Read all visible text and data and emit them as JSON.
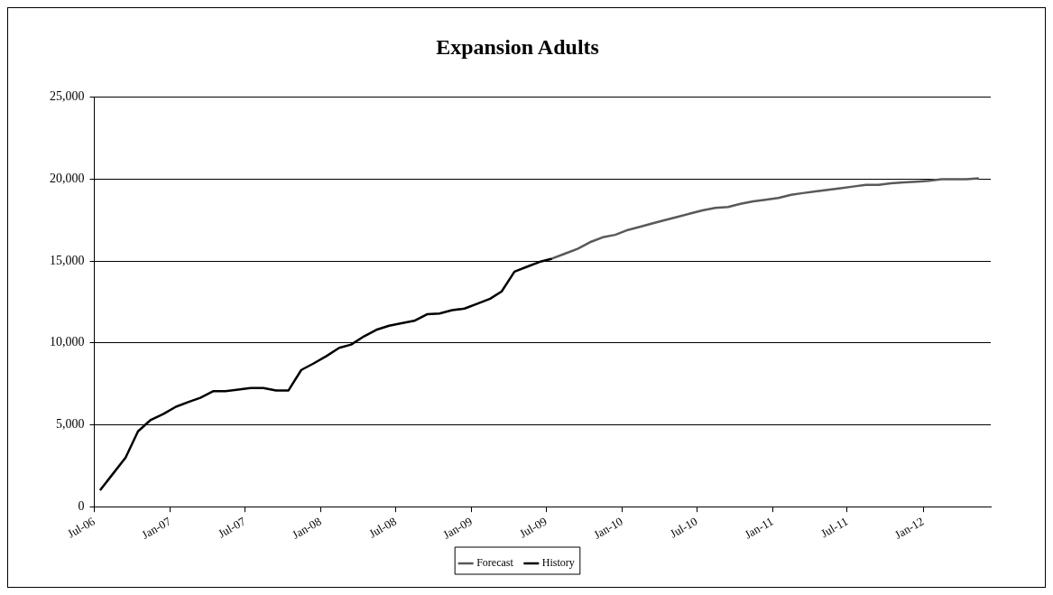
{
  "chart_data": {
    "type": "line",
    "title": "Expansion Adults",
    "xlim": [
      "2006-07-01",
      "2012-06-13"
    ],
    "xticks": [
      {
        "value": "2006-07-01",
        "label": "Jul-06"
      },
      {
        "value": "2007-01-01",
        "label": "Jan-07"
      },
      {
        "value": "2007-07-01",
        "label": "Jul-07"
      },
      {
        "value": "2008-01-01",
        "label": "Jan-08"
      },
      {
        "value": "2008-07-01",
        "label": "Jul-08"
      },
      {
        "value": "2009-01-01",
        "label": "Jan-09"
      },
      {
        "value": "2009-07-01",
        "label": "Jul-09"
      },
      {
        "value": "2010-01-01",
        "label": "Jan-10"
      },
      {
        "value": "2010-07-01",
        "label": "Jul-10"
      },
      {
        "value": "2011-01-01",
        "label": "Jan-11"
      },
      {
        "value": "2011-07-01",
        "label": "Jul-11"
      },
      {
        "value": "2012-01-01",
        "label": "Jan-12"
      }
    ],
    "ylim": [
      0,
      25000
    ],
    "yticks": [
      {
        "value": 0,
        "label": "0"
      },
      {
        "value": 5000,
        "label": "5,000"
      },
      {
        "value": 10000,
        "label": "10,000"
      },
      {
        "value": 15000,
        "label": "15,000"
      },
      {
        "value": 20000,
        "label": "20,000"
      },
      {
        "value": 25000,
        "label": "25,000"
      }
    ],
    "grid": "y",
    "legend": "bottom",
    "marker": "none",
    "line_style": "solid",
    "series": [
      {
        "name": "Forecast",
        "color": "#595959",
        "x": [
          "2009-07-15",
          "2009-08-15",
          "2009-09-15",
          "2009-10-15",
          "2009-11-15",
          "2009-12-15",
          "2010-01-15",
          "2010-02-15",
          "2010-03-15",
          "2010-04-15",
          "2010-05-15",
          "2010-06-15",
          "2010-07-15",
          "2010-08-15",
          "2010-09-15",
          "2010-10-15",
          "2010-11-15",
          "2010-12-15",
          "2011-01-15",
          "2011-02-15",
          "2011-03-15",
          "2011-04-15",
          "2011-05-15",
          "2011-06-15",
          "2011-07-15",
          "2011-08-15",
          "2011-09-15",
          "2011-10-15",
          "2011-11-15",
          "2011-12-15",
          "2012-01-15",
          "2012-02-15",
          "2012-03-15",
          "2012-04-15",
          "2012-05-15"
        ],
        "values": [
          15150,
          15450,
          15750,
          16150,
          16450,
          16600,
          16900,
          17100,
          17300,
          17500,
          17700,
          17900,
          18100,
          18250,
          18300,
          18500,
          18650,
          18750,
          18850,
          19050,
          19150,
          19250,
          19350,
          19450,
          19550,
          19650,
          19650,
          19750,
          19800,
          19850,
          19900,
          20000,
          20000,
          20000,
          20050
        ]
      },
      {
        "name": "History",
        "color": "#000000",
        "x": [
          "2006-07-15",
          "2006-08-15",
          "2006-09-15",
          "2006-10-15",
          "2006-11-15",
          "2006-12-15",
          "2007-01-15",
          "2007-02-15",
          "2007-03-15",
          "2007-04-15",
          "2007-05-15",
          "2007-06-15",
          "2007-07-15",
          "2007-08-15",
          "2007-09-15",
          "2007-10-15",
          "2007-11-15",
          "2007-12-15",
          "2008-01-15",
          "2008-02-15",
          "2008-03-15",
          "2008-04-15",
          "2008-05-15",
          "2008-06-15",
          "2008-07-15",
          "2008-08-15",
          "2008-09-15",
          "2008-10-15",
          "2008-11-15",
          "2008-12-15",
          "2009-01-15",
          "2009-02-15",
          "2009-03-15",
          "2009-04-15",
          "2009-05-15",
          "2009-06-15",
          "2009-07-15"
        ],
        "values": [
          1000,
          2000,
          3000,
          4600,
          5300,
          5650,
          6100,
          6400,
          6650,
          7050,
          7050,
          7150,
          7250,
          7250,
          7100,
          7100,
          8350,
          8750,
          9200,
          9700,
          9900,
          10400,
          10800,
          11050,
          11200,
          11350,
          11750,
          11800,
          12000,
          12100,
          12400,
          12700,
          13150,
          14350,
          14650,
          14950,
          15150
        ]
      }
    ]
  }
}
